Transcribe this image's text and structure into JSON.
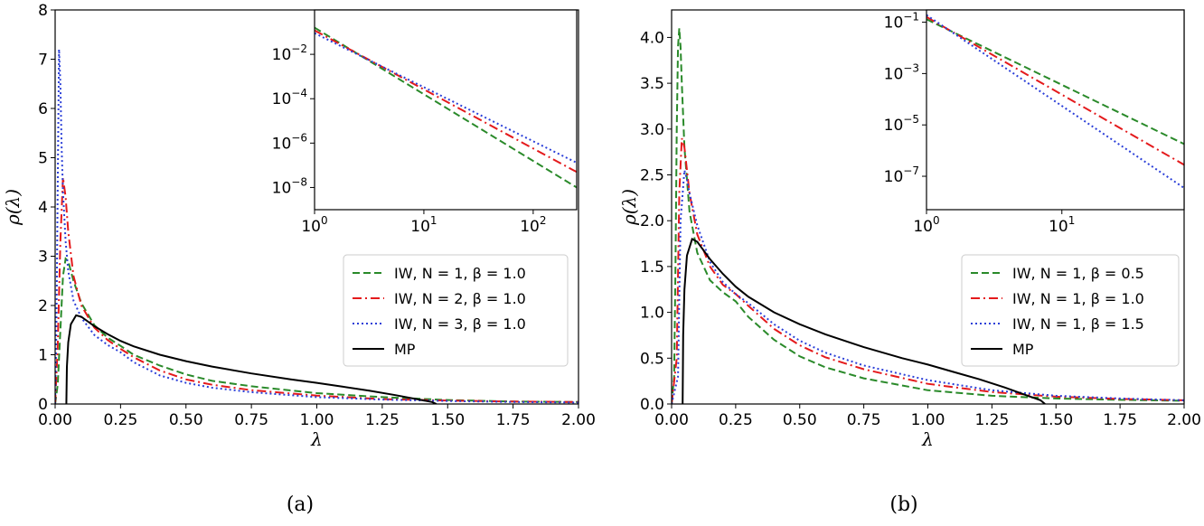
{
  "captions": [
    "(a)",
    "(b)"
  ],
  "colors": {
    "green": "#2a8a2a",
    "red": "#e41a1c",
    "blue": "#2b3fd8",
    "black": "#000000"
  },
  "chart_data": [
    {
      "type": "line",
      "caption": "(a)",
      "xlabel": "λ",
      "ylabel": "ρ(λ)",
      "xlim": [
        0,
        2.0
      ],
      "ylim": [
        0,
        8
      ],
      "xticks": [
        "0.00",
        "0.25",
        "0.50",
        "0.75",
        "1.00",
        "1.25",
        "1.50",
        "1.75",
        "2.00"
      ],
      "yticks": [
        "0",
        "1",
        "2",
        "3",
        "4",
        "5",
        "6",
        "7",
        "8"
      ],
      "legend": {
        "placement": "lower-right",
        "entries": [
          "IW, N = 1, β = 1.0",
          "IW, N = 2, β = 1.0",
          "IW, N = 3, β = 1.0",
          "MP"
        ]
      },
      "series": [
        {
          "name": "IW, N = 1, β = 1.0",
          "color": "green",
          "style": "dashed",
          "x": [
            0.0,
            0.01,
            0.02,
            0.03,
            0.04,
            0.05,
            0.07,
            0.1,
            0.15,
            0.2,
            0.25,
            0.3,
            0.4,
            0.5,
            0.6,
            0.75,
            1.0,
            1.25,
            1.5,
            1.75,
            2.0
          ],
          "y": [
            0,
            0.4,
            1.5,
            2.6,
            2.95,
            2.9,
            2.5,
            2.05,
            1.6,
            1.35,
            1.18,
            1.0,
            0.78,
            0.6,
            0.47,
            0.36,
            0.22,
            0.14,
            0.08,
            0.05,
            0.04
          ]
        },
        {
          "name": "IW, N = 2, β = 1.0",
          "color": "red",
          "style": "dashdot",
          "x": [
            0.0,
            0.01,
            0.02,
            0.03,
            0.04,
            0.05,
            0.07,
            0.1,
            0.15,
            0.2,
            0.25,
            0.3,
            0.4,
            0.5,
            0.6,
            0.75,
            1.0,
            1.25,
            1.5,
            1.75,
            2.0
          ],
          "y": [
            0,
            1.2,
            3.3,
            4.6,
            4.2,
            3.5,
            2.6,
            2.0,
            1.55,
            1.3,
            1.12,
            0.95,
            0.68,
            0.5,
            0.39,
            0.28,
            0.17,
            0.1,
            0.07,
            0.05,
            0.04
          ]
        },
        {
          "name": "IW, N = 3, β = 1.0",
          "color": "blue",
          "style": "dotted",
          "x": [
            0.0,
            0.005,
            0.01,
            0.015,
            0.02,
            0.025,
            0.03,
            0.04,
            0.05,
            0.07,
            0.1,
            0.15,
            0.2,
            0.25,
            0.3,
            0.4,
            0.5,
            0.6,
            0.75,
            1.0,
            1.25,
            1.5,
            1.75,
            2.0
          ],
          "y": [
            0,
            1.5,
            4.5,
            7.2,
            6.5,
            5.2,
            4.3,
            3.3,
            2.7,
            2.1,
            1.75,
            1.4,
            1.2,
            1.05,
            0.85,
            0.58,
            0.43,
            0.33,
            0.24,
            0.14,
            0.09,
            0.06,
            0.04,
            0.03
          ]
        },
        {
          "name": "MP",
          "color": "black",
          "style": "solid",
          "x": [
            0.043,
            0.045,
            0.05,
            0.06,
            0.08,
            0.1,
            0.15,
            0.2,
            0.25,
            0.3,
            0.4,
            0.5,
            0.6,
            0.75,
            0.9,
            1.0,
            1.1,
            1.2,
            1.3,
            1.4,
            1.44,
            1.457
          ],
          "y": [
            0,
            0.75,
            1.25,
            1.62,
            1.8,
            1.77,
            1.58,
            1.42,
            1.28,
            1.17,
            1.0,
            0.87,
            0.76,
            0.62,
            0.5,
            0.43,
            0.35,
            0.27,
            0.18,
            0.08,
            0.04,
            0
          ]
        }
      ],
      "inset": {
        "xscale": "log",
        "yscale": "log",
        "xlim": [
          1,
          250
        ],
        "ylim": [
          1e-09,
          1
        ],
        "xticks": [
          "10^0",
          "10^1",
          "10^2"
        ],
        "yticks": [
          "10^-2",
          "10^-4",
          "10^-6",
          "10^-8"
        ],
        "series": [
          {
            "name": "IW, N = 1, β = 1.0",
            "color": "green",
            "style": "dashed",
            "x": [
              1,
              250
            ],
            "y": [
              0.16,
              1e-08
            ]
          },
          {
            "name": "IW, N = 2, β = 1.0",
            "color": "red",
            "style": "dashdot",
            "x": [
              1,
              250
            ],
            "y": [
              0.12,
              5e-08
            ]
          },
          {
            "name": "IW, N = 3, β = 1.0",
            "color": "blue",
            "style": "dotted",
            "x": [
              1,
              250
            ],
            "y": [
              0.09,
              1.3e-07
            ]
          }
        ]
      }
    },
    {
      "type": "line",
      "caption": "(b)",
      "xlabel": "λ",
      "ylabel": "ρ(λ)",
      "xlim": [
        0,
        2.0
      ],
      "ylim": [
        0,
        4.3
      ],
      "xticks": [
        "0.00",
        "0.25",
        "0.50",
        "0.75",
        "1.00",
        "1.25",
        "1.50",
        "1.75",
        "2.00"
      ],
      "yticks": [
        "0.0",
        "0.5",
        "1.0",
        "1.5",
        "2.0",
        "2.5",
        "3.0",
        "3.5",
        "4.0"
      ],
      "legend": {
        "placement": "lower-right",
        "entries": [
          "IW, N = 1, β = 0.5",
          "IW, N = 1, β = 1.0",
          "IW, N = 1, β = 1.5",
          "MP"
        ]
      },
      "series": [
        {
          "name": "IW, N = 1, β = 0.5",
          "color": "green",
          "style": "dashed",
          "x": [
            0.0,
            0.01,
            0.015,
            0.02,
            0.025,
            0.03,
            0.035,
            0.04,
            0.05,
            0.07,
            0.1,
            0.15,
            0.2,
            0.25,
            0.3,
            0.4,
            0.5,
            0.6,
            0.75,
            1.0,
            1.25,
            1.5,
            1.75,
            2.0
          ],
          "y": [
            0,
            0.3,
            1.5,
            3.0,
            3.9,
            4.1,
            3.9,
            3.5,
            2.8,
            2.1,
            1.65,
            1.35,
            1.22,
            1.12,
            0.95,
            0.7,
            0.52,
            0.4,
            0.28,
            0.15,
            0.09,
            0.06,
            0.045,
            0.035
          ]
        },
        {
          "name": "IW, N = 1, β = 1.0",
          "color": "red",
          "style": "dashdot",
          "x": [
            0.0,
            0.02,
            0.03,
            0.04,
            0.05,
            0.06,
            0.07,
            0.1,
            0.15,
            0.2,
            0.25,
            0.3,
            0.4,
            0.5,
            0.6,
            0.75,
            1.0,
            1.25,
            1.5,
            1.75,
            2.0
          ],
          "y": [
            0,
            0.5,
            2.3,
            2.9,
            2.8,
            2.55,
            2.3,
            1.85,
            1.5,
            1.3,
            1.2,
            1.07,
            0.82,
            0.64,
            0.51,
            0.38,
            0.22,
            0.13,
            0.08,
            0.055,
            0.04
          ]
        },
        {
          "name": "IW, N = 1, β = 1.5",
          "color": "blue",
          "style": "dotted",
          "x": [
            0.0,
            0.025,
            0.035,
            0.05,
            0.06,
            0.07,
            0.1,
            0.15,
            0.2,
            0.25,
            0.3,
            0.4,
            0.5,
            0.6,
            0.75,
            1.0,
            1.25,
            1.5,
            1.75,
            2.0
          ],
          "y": [
            0,
            0.3,
            2.0,
            2.55,
            2.45,
            2.3,
            1.95,
            1.55,
            1.33,
            1.2,
            1.1,
            0.87,
            0.69,
            0.56,
            0.42,
            0.26,
            0.15,
            0.09,
            0.06,
            0.04
          ]
        },
        {
          "name": "MP",
          "color": "black",
          "style": "solid",
          "x": [
            0.043,
            0.045,
            0.05,
            0.06,
            0.08,
            0.1,
            0.15,
            0.2,
            0.25,
            0.3,
            0.4,
            0.5,
            0.6,
            0.75,
            0.9,
            1.0,
            1.1,
            1.2,
            1.3,
            1.4,
            1.44,
            1.457
          ],
          "y": [
            0,
            0.75,
            1.25,
            1.62,
            1.8,
            1.77,
            1.58,
            1.42,
            1.28,
            1.17,
            1.0,
            0.87,
            0.76,
            0.62,
            0.5,
            0.43,
            0.35,
            0.27,
            0.18,
            0.08,
            0.04,
            0
          ]
        }
      ],
      "inset": {
        "xscale": "log",
        "yscale": "log",
        "xlim": [
          1,
          80
        ],
        "ylim": [
          5e-09,
          0.3
        ],
        "xticks": [
          "10^0",
          "10^1"
        ],
        "yticks": [
          "10^-1",
          "10^-3",
          "10^-5",
          "10^-7"
        ],
        "series": [
          {
            "name": "IW, N = 1, β = 0.5",
            "color": "green",
            "style": "dashed",
            "x": [
              1,
              80
            ],
            "y": [
              0.13,
              1.8e-06
            ]
          },
          {
            "name": "IW, N = 1, β = 1.0",
            "color": "red",
            "style": "dashdot",
            "x": [
              1,
              80
            ],
            "y": [
              0.16,
              2.8e-07
            ]
          },
          {
            "name": "IW, N = 1, β = 1.5",
            "color": "blue",
            "style": "dotted",
            "x": [
              1,
              80
            ],
            "y": [
              0.19,
              3.5e-08
            ]
          }
        ]
      }
    }
  ]
}
